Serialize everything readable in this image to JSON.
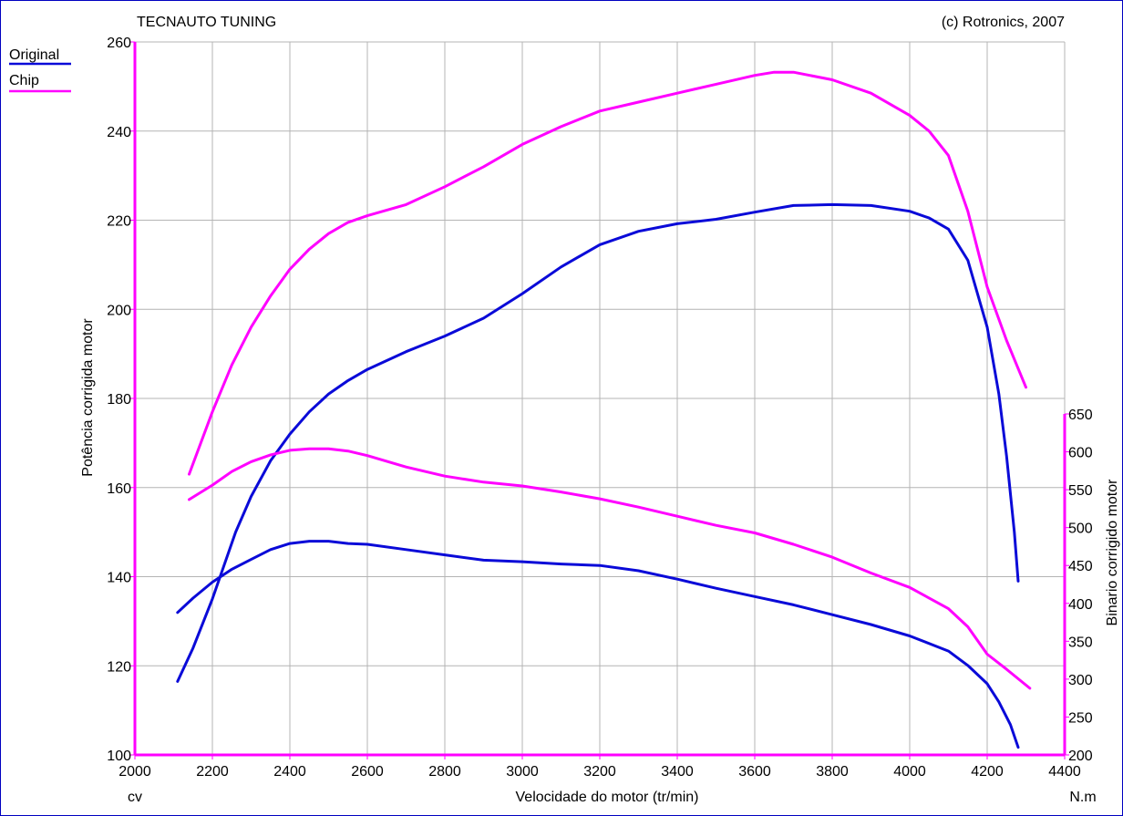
{
  "header": {
    "left_title": "TECNAUTO TUNING",
    "right_title": "(c) Rotronics, 2007"
  },
  "legend": [
    {
      "label": "Original",
      "color": "#0a0ad8"
    },
    {
      "label": "Chip",
      "color": "#ff00ff"
    }
  ],
  "axes": {
    "x_label": "Velocidade do motor (tr/min)",
    "y_left_label": "Potência corrigida  motor",
    "y_right_label": "Binario corrigido motor",
    "x_unit": "cv",
    "y_right_unit": "N.m"
  },
  "chart_data": {
    "type": "line",
    "title": "",
    "xlabel": "Velocidade do motor (tr/min)",
    "ylabel": "Potência corrigida  motor",
    "y2label": "Binario corrigido motor",
    "xlim": [
      2000,
      4400
    ],
    "ylim": [
      100,
      260
    ],
    "y2lim": [
      200,
      650
    ],
    "x_ticks": [
      2000,
      2200,
      2400,
      2600,
      2800,
      3000,
      3200,
      3400,
      3600,
      3800,
      4000,
      4200,
      4400
    ],
    "y_ticks": [
      100,
      120,
      140,
      160,
      180,
      200,
      220,
      240,
      260
    ],
    "y2_ticks": [
      200,
      250,
      300,
      350,
      400,
      450,
      500,
      550,
      600,
      650
    ],
    "grid": true,
    "legend_position": "top-left",
    "series": [
      {
        "name": "Original",
        "axis": "left",
        "color": "#0a0ad8",
        "x": [
          2110,
          2150,
          2200,
          2260,
          2300,
          2350,
          2400,
          2450,
          2500,
          2550,
          2600,
          2700,
          2800,
          2900,
          3000,
          3100,
          3200,
          3300,
          3400,
          3500,
          3600,
          3700,
          3800,
          3900,
          4000,
          4050,
          4100,
          4150,
          4200,
          4230,
          4250,
          4270,
          4280
        ],
        "y": [
          116.5,
          124,
          135,
          150,
          158,
          166,
          172,
          177,
          181,
          184,
          186.5,
          190.5,
          194,
          198,
          203.5,
          209.5,
          214.5,
          217.5,
          219.2,
          220.2,
          221.8,
          223.3,
          223.5,
          223.3,
          222,
          220.5,
          218,
          211,
          196,
          181,
          167,
          150,
          139
        ]
      },
      {
        "name": "Original",
        "axis": "right",
        "color": "#0a0ad8",
        "x": [
          2110,
          2150,
          2200,
          2250,
          2300,
          2350,
          2400,
          2450,
          2500,
          2550,
          2600,
          2700,
          2800,
          2900,
          3000,
          3100,
          3200,
          3300,
          3400,
          3500,
          3600,
          3700,
          3800,
          3900,
          4000,
          4100,
          4150,
          4200,
          4230,
          4260,
          4280
        ],
        "y": [
          388,
          407,
          428,
          445,
          458,
          471,
          479,
          482,
          482,
          479,
          478,
          471,
          464,
          457,
          455,
          452,
          450,
          443,
          432,
          420,
          409,
          398,
          385,
          372,
          357,
          337,
          318,
          294,
          270,
          240,
          210
        ]
      },
      {
        "name": "Chip",
        "axis": "left",
        "color": "#ff00ff",
        "x": [
          2140,
          2200,
          2250,
          2300,
          2350,
          2400,
          2450,
          2500,
          2550,
          2600,
          2700,
          2800,
          2900,
          3000,
          3100,
          3200,
          3300,
          3400,
          3500,
          3600,
          3650,
          3700,
          3800,
          3900,
          4000,
          4050,
          4100,
          4150,
          4200,
          4250,
          4300
        ],
        "y": [
          163,
          177,
          187.5,
          196,
          203,
          209,
          213.5,
          217,
          219.5,
          221,
          223.5,
          227.5,
          232,
          237,
          241,
          244.5,
          246.5,
          248.5,
          250.5,
          252.5,
          253.2,
          253.2,
          251.5,
          248.5,
          243.5,
          240,
          234.5,
          222,
          205,
          193,
          182.5
        ]
      },
      {
        "name": "Chip",
        "axis": "right",
        "color": "#ff00ff",
        "x": [
          2140,
          2200,
          2250,
          2300,
          2350,
          2400,
          2450,
          2500,
          2550,
          2600,
          2700,
          2800,
          2900,
          3000,
          3100,
          3200,
          3300,
          3400,
          3500,
          3600,
          3700,
          3800,
          3900,
          4000,
          4100,
          4150,
          4200,
          4250,
          4310
        ],
        "y": [
          537,
          556,
          574,
          587,
          596,
          602,
          604,
          604,
          601,
          595,
          580,
          568,
          560,
          555,
          547,
          538,
          527,
          515,
          503,
          493,
          478,
          461,
          440,
          421,
          393,
          369,
          333,
          313,
          288
        ]
      }
    ]
  }
}
